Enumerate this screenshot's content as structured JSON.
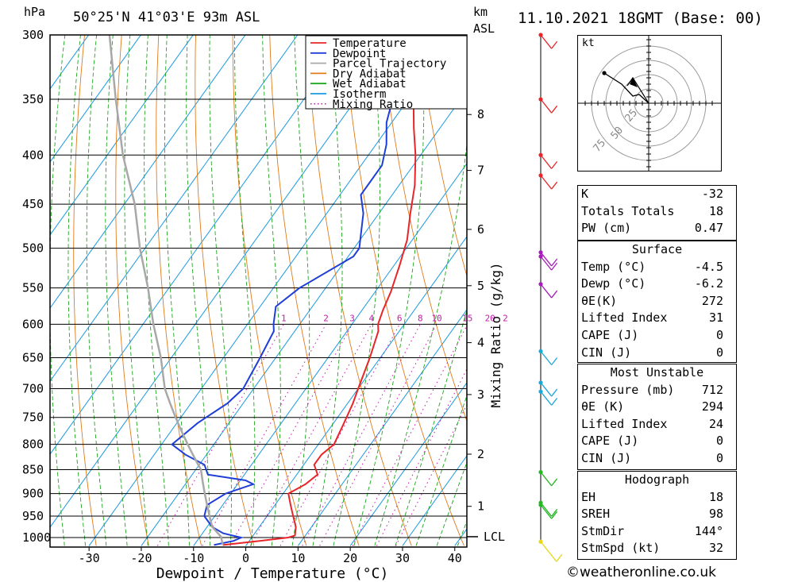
{
  "header": {
    "pressure_unit": "hPa",
    "location": "50°25'N  41°03'E  93m  ASL",
    "km_unit": "km",
    "asl_label": "ASL",
    "datetime": "11.10.2021  18GMT  (Base: 00)"
  },
  "chart_data": {
    "type": "line",
    "xlabel": "Dewpoint / Temperature (°C)",
    "ylabel": "hPa",
    "y2label": "Mixing Ratio (g/kg)",
    "y_scale": "log-pressure",
    "ylim": [
      1020,
      300
    ],
    "xlim": [
      -40,
      40
    ],
    "pressure_ticks": [
      300,
      350,
      400,
      450,
      500,
      550,
      600,
      650,
      700,
      750,
      800,
      850,
      900,
      950,
      1000
    ],
    "temperature_ticks": [
      -30,
      -20,
      -10,
      0,
      10,
      20,
      30,
      40
    ],
    "km_ticks": [
      {
        "km": "1",
        "p": 928
      },
      {
        "km": "2",
        "p": 819
      },
      {
        "km": "3",
        "p": 710
      },
      {
        "km": "4",
        "p": 627
      },
      {
        "km": "5",
        "p": 547
      },
      {
        "km": "6",
        "p": 478
      },
      {
        "km": "7",
        "p": 415
      },
      {
        "km": "8",
        "p": 363
      }
    ],
    "lcl": {
      "label": "LCL",
      "p": 998
    },
    "mixing_ratio_labels": [
      "1",
      "2",
      "3",
      "4",
      "6",
      "8",
      "10",
      "15",
      "20",
      "25"
    ],
    "legend": {
      "position": "top-right",
      "entries": [
        {
          "name": "Temperature",
          "color": "#e8262a",
          "style": "solid"
        },
        {
          "name": "Dewpoint",
          "color": "#1f3ed8",
          "style": "solid"
        },
        {
          "name": "Parcel Trajectory",
          "color": "#a8a8a8",
          "style": "solid"
        },
        {
          "name": "Dry Adiabat",
          "color": "#e07b1a",
          "style": "solid"
        },
        {
          "name": "Wet Adiabat",
          "color": "#1ea51e",
          "style": "solid"
        },
        {
          "name": "Isotherm",
          "color": "#1a9ae0",
          "style": "solid"
        },
        {
          "name": "Mixing Ratio",
          "color": "#c21aa8",
          "style": "dotted"
        }
      ]
    },
    "series": [
      {
        "name": "Temperature",
        "color": "#e8262a",
        "points": [
          [
            -4.5,
            1018
          ],
          [
            2,
            1008
          ],
          [
            7,
            1000
          ],
          [
            8,
            995
          ],
          [
            7,
            975
          ],
          [
            5,
            950
          ],
          [
            3,
            925
          ],
          [
            1,
            900
          ],
          [
            3,
            880
          ],
          [
            4,
            860
          ],
          [
            2,
            840
          ],
          [
            2,
            820
          ],
          [
            3,
            800
          ],
          [
            2,
            760
          ],
          [
            1,
            725
          ],
          [
            0,
            700
          ],
          [
            -2,
            650
          ],
          [
            -4,
            610
          ],
          [
            -5,
            600
          ],
          [
            -6,
            580
          ],
          [
            -7,
            555
          ],
          [
            -9,
            520
          ],
          [
            -11,
            490
          ],
          [
            -14,
            460
          ],
          [
            -17,
            430
          ],
          [
            -21,
            400
          ],
          [
            -25,
            375
          ],
          [
            -29,
            350
          ],
          [
            -34,
            325
          ],
          [
            -38,
            300
          ]
        ]
      },
      {
        "name": "Dewpoint",
        "color": "#1f3ed8",
        "points": [
          [
            -6.2,
            1018
          ],
          [
            -3,
            1008
          ],
          [
            -2,
            1000
          ],
          [
            -6,
            990
          ],
          [
            -9,
            975
          ],
          [
            -12,
            950
          ],
          [
            -13,
            925
          ],
          [
            -11,
            900
          ],
          [
            -7,
            880
          ],
          [
            -9,
            872
          ],
          [
            -17,
            860
          ],
          [
            -19,
            840
          ],
          [
            -24,
            820
          ],
          [
            -28,
            800
          ],
          [
            -26,
            760
          ],
          [
            -23,
            725
          ],
          [
            -22,
            700
          ],
          [
            -23,
            650
          ],
          [
            -24,
            610
          ],
          [
            -25,
            600
          ],
          [
            -27,
            575
          ],
          [
            -25,
            550
          ],
          [
            -19,
            510
          ],
          [
            -19,
            500
          ],
          [
            -23,
            460
          ],
          [
            -26,
            440
          ],
          [
            -26,
            410
          ],
          [
            -28,
            390
          ],
          [
            -31,
            370
          ],
          [
            -33,
            350
          ],
          [
            -35,
            330
          ],
          [
            -38,
            315
          ],
          [
            -42,
            300
          ]
        ]
      },
      {
        "name": "Parcel Trajectory",
        "color": "#a8a8a8",
        "points": [
          [
            -4.5,
            1018
          ],
          [
            -6,
            998
          ],
          [
            -9,
            975
          ],
          [
            -11,
            950
          ],
          [
            -13,
            925
          ],
          [
            -15,
            900
          ],
          [
            -17,
            875
          ],
          [
            -19,
            850
          ],
          [
            -22,
            825
          ],
          [
            -25,
            800
          ],
          [
            -28,
            775
          ],
          [
            -31,
            750
          ],
          [
            -34,
            725
          ],
          [
            -37,
            700
          ],
          [
            -42,
            650
          ],
          [
            -48,
            600
          ],
          [
            -54,
            550
          ],
          [
            -61,
            500
          ],
          [
            -68,
            450
          ],
          [
            -77,
            400
          ],
          [
            -86,
            350
          ],
          [
            -96,
            300
          ]
        ]
      }
    ]
  },
  "wind_profile": {
    "levels": [
      {
        "p": 300,
        "color": "#e8262a"
      },
      {
        "p": 350,
        "color": "#e8262a"
      },
      {
        "p": 400,
        "color": "#e8262a"
      },
      {
        "p": 420,
        "color": "#e8262a"
      },
      {
        "p": 505,
        "color": "#a51ab8"
      },
      {
        "p": 510,
        "color": "#a51ab8"
      },
      {
        "p": 545,
        "color": "#a51ab8"
      },
      {
        "p": 640,
        "color": "#1aa8d8"
      },
      {
        "p": 690,
        "color": "#1aa8d8"
      },
      {
        "p": 705,
        "color": "#1aa8d8"
      },
      {
        "p": 855,
        "color": "#24b824"
      },
      {
        "p": 920,
        "color": "#24b824"
      },
      {
        "p": 925,
        "color": "#24b824"
      },
      {
        "p": 1010,
        "color": "#e8d81a"
      }
    ]
  },
  "hodograph": {
    "unit": "kt",
    "ring_labels": [
      "25",
      "50",
      "75"
    ]
  },
  "indices": {
    "k_label": "K",
    "k_value": "-32",
    "tt_label": "Totals Totals",
    "tt_value": "18",
    "pw_label": "PW (cm)",
    "pw_value": "0.47"
  },
  "surface": {
    "title": "Surface",
    "temp_label": "Temp (°C)",
    "temp_value": "-4.5",
    "dewp_label": "Dewp (°C)",
    "dewp_value": "-6.2",
    "theta_label": "θE(K)",
    "theta_value": "272",
    "li_label": "Lifted Index",
    "li_value": "31",
    "cape_label": "CAPE (J)",
    "cape_value": "0",
    "cin_label": "CIN (J)",
    "cin_value": "0"
  },
  "most_unstable": {
    "title": "Most Unstable",
    "pressure_label": "Pressure (mb)",
    "pressure_value": "712",
    "theta_label": "θE (K)",
    "theta_value": "294",
    "li_label": "Lifted Index",
    "li_value": "24",
    "cape_label": "CAPE (J)",
    "cape_value": "0",
    "cin_label": "CIN (J)",
    "cin_value": "0"
  },
  "hodo_stats": {
    "title": "Hodograph",
    "eh_label": "EH",
    "eh_value": "18",
    "srh_label": "SREH",
    "srh_value": "98",
    "dir_label": "StmDir",
    "dir_value": "144°",
    "spd_label": "StmSpd (kt)",
    "spd_value": "32"
  },
  "footer": {
    "copyright": "©weatheronline.co.uk"
  }
}
